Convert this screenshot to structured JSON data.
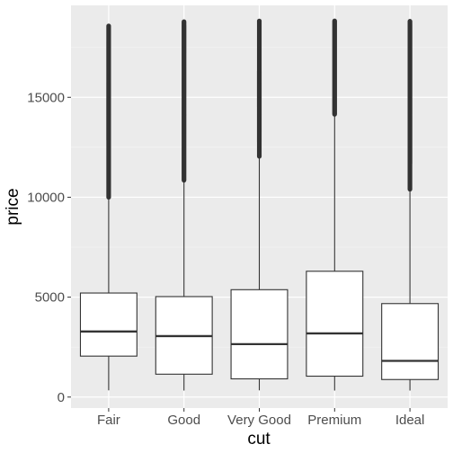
{
  "chart_data": {
    "type": "boxplot",
    "xlabel": "cut",
    "ylabel": "price",
    "ylim": [
      -550,
      19600
    ],
    "y_ticks": [
      0,
      5000,
      10000,
      15000
    ],
    "y_tick_labels": [
      "0",
      "5000",
      "10000",
      "15000"
    ],
    "categories": [
      "Fair",
      "Good",
      "Very Good",
      "Premium",
      "Ideal"
    ],
    "boxes": [
      {
        "category": "Fair",
        "whisker_low": 337,
        "q1": 2050,
        "median": 3282,
        "q3": 5206,
        "whisker_high": 9950,
        "outlier_min": 10000,
        "outlier_max": 18574
      },
      {
        "category": "Good",
        "whisker_low": 327,
        "q1": 1145,
        "median": 3050,
        "q3": 5028,
        "whisker_high": 10830,
        "outlier_min": 10850,
        "outlier_max": 18788
      },
      {
        "category": "Very Good",
        "whisker_low": 336,
        "q1": 912,
        "median": 2648,
        "q3": 5373,
        "whisker_high": 12000,
        "outlier_min": 12050,
        "outlier_max": 18818
      },
      {
        "category": "Premium",
        "whisker_low": 326,
        "q1": 1046,
        "median": 3185,
        "q3": 6296,
        "whisker_high": 14100,
        "outlier_min": 14150,
        "outlier_max": 18823
      },
      {
        "category": "Ideal",
        "whisker_low": 326,
        "q1": 878,
        "median": 1810,
        "q3": 4678,
        "whisker_high": 10350,
        "outlier_min": 10400,
        "outlier_max": 18806
      }
    ],
    "grid": true,
    "colors": {
      "panel_background": "#ebebeb",
      "grid_major": "#ffffff",
      "grid_minor": "#f4f4f4",
      "box_fill": "#ffffff",
      "box_stroke": "#333333",
      "outlier": "#333333",
      "tick_label": "#4d4d4d",
      "tick_mark": "#333333"
    }
  }
}
